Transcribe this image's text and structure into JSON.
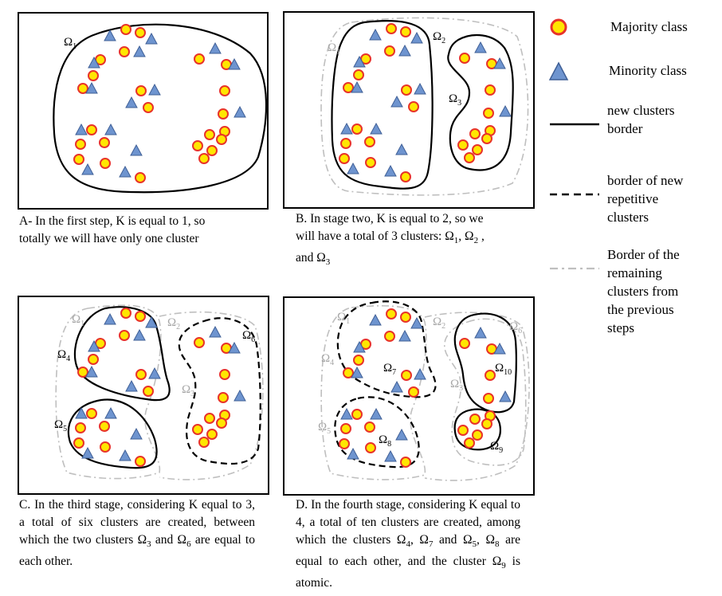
{
  "colors": {
    "circle_fill": "#FFE600",
    "circle_stroke": "#E8332A",
    "triangle_fill": "#6E94CF",
    "triangle_stroke": "#3F5F96",
    "remaining_border": "#BFBFBF",
    "remaining_label": "#A6A6A6"
  },
  "captions": {
    "a": [
      "A- In the first step, K is equal to 1, so",
      "totally we will have only one cluster"
    ],
    "b_1": "B. In stage two, K is equal to 2, so we",
    "b_2": "will have a total of 3 clusters: ",
    "b_3": "and ",
    "c_1": "C. In the third stage, considering K equal to 3, a total of six clusters are created, between which the two clusters ",
    "c_2": " and ",
    "c_3": " are equal to each other.",
    "d_1": "D. In the fourth stage, considering K equal to 4, a total of ten clusters are created, among which the clusters ",
    "d_2": " and ",
    "d_3": " are equal to each other, and the cluster ",
    "d_4": " is atomic."
  },
  "symbols": {
    "o1": "Ω1",
    "o2": "Ω2",
    "o3": "Ω3",
    "o4": "Ω4",
    "o5": "Ω5",
    "o6": "Ω6",
    "o7": "Ω7",
    "o8": "Ω8",
    "o9": "Ω9",
    "o10": "Ω10",
    "comma": ",",
    "comma_space": ", ",
    "b_pair_sep": ", ",
    "b_end_comma": " ,"
  },
  "legend": {
    "majority": "Majority class",
    "minority": "Minority class",
    "new_border": [
      "new  clusters",
      "border"
    ],
    "repetitive_border": [
      "border of new",
      "repetitive",
      "clusters"
    ],
    "remaining_border": [
      "Border of the",
      "remaining",
      "clusters from",
      "the previous",
      "steps"
    ]
  },
  "icons": {
    "majority": "circle",
    "minority": "triangle"
  }
}
